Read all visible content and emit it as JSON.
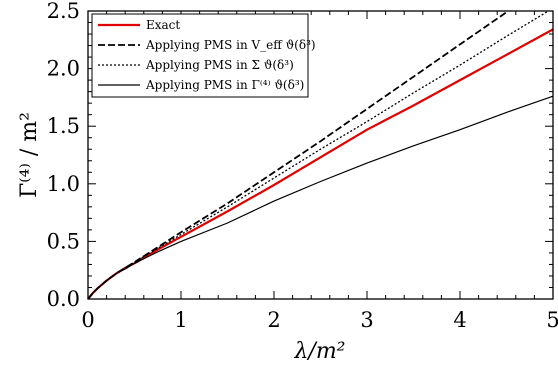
{
  "chart_data": {
    "type": "line",
    "xlim": [
      0,
      5
    ],
    "ylim": [
      0,
      2.5
    ],
    "x_ticks": [
      "0",
      "1",
      "2",
      "3",
      "4",
      "5"
    ],
    "y_ticks": [
      "0.0",
      "0.5",
      "1.0",
      "1.5",
      "2.0",
      "2.5"
    ],
    "xlabel": "λ/m²",
    "ylabel": "Γ⁽⁴⁾ / m²",
    "grid": false,
    "legend_position": "top-left",
    "series": [
      {
        "name": "Exact",
        "color": "#e00000",
        "style": "solid",
        "x": [
          0,
          0.05,
          0.1,
          0.2,
          0.3,
          0.4,
          0.5,
          0.75,
          1,
          1.5,
          2,
          2.5,
          3,
          3.5,
          4,
          4.5,
          5
        ],
        "y": [
          0,
          0.05,
          0.09,
          0.16,
          0.22,
          0.27,
          0.31,
          0.43,
          0.54,
          0.76,
          0.99,
          1.23,
          1.47,
          1.68,
          1.9,
          2.12,
          2.34
        ]
      },
      {
        "name": "Applying PMS in V_eff ϑ(δ³)",
        "color": "#000000",
        "style": "dashed",
        "x": [
          0,
          0.05,
          0.1,
          0.2,
          0.3,
          0.4,
          0.5,
          0.75,
          1,
          1.5,
          2,
          2.5,
          3,
          3.5,
          4,
          4.5
        ],
        "y": [
          0,
          0.05,
          0.09,
          0.16,
          0.22,
          0.27,
          0.32,
          0.45,
          0.58,
          0.83,
          1.1,
          1.37,
          1.65,
          1.93,
          2.21,
          2.49
        ]
      },
      {
        "name": "Applying PMS in Σ ϑ(δ³)",
        "color": "#000000",
        "style": "dotted",
        "x": [
          0,
          0.05,
          0.1,
          0.2,
          0.3,
          0.4,
          0.5,
          0.75,
          1,
          1.5,
          2,
          2.5,
          3,
          3.5,
          4,
          4.5,
          4.95
        ],
        "y": [
          0,
          0.05,
          0.09,
          0.16,
          0.22,
          0.27,
          0.32,
          0.44,
          0.56,
          0.8,
          1.05,
          1.3,
          1.54,
          1.79,
          2.03,
          2.28,
          2.5
        ]
      },
      {
        "name": "Applying PMS in Γ⁽⁴⁾ ϑ(δ³)",
        "color": "#000000",
        "style": "solid-thin",
        "x": [
          0,
          0.05,
          0.1,
          0.2,
          0.3,
          0.4,
          0.5,
          0.75,
          1,
          1.5,
          2,
          2.5,
          3,
          3.5,
          4,
          4.5,
          5
        ],
        "y": [
          0,
          0.05,
          0.09,
          0.16,
          0.22,
          0.26,
          0.31,
          0.41,
          0.5,
          0.66,
          0.85,
          1.02,
          1.18,
          1.33,
          1.47,
          1.62,
          1.76
        ]
      }
    ]
  }
}
